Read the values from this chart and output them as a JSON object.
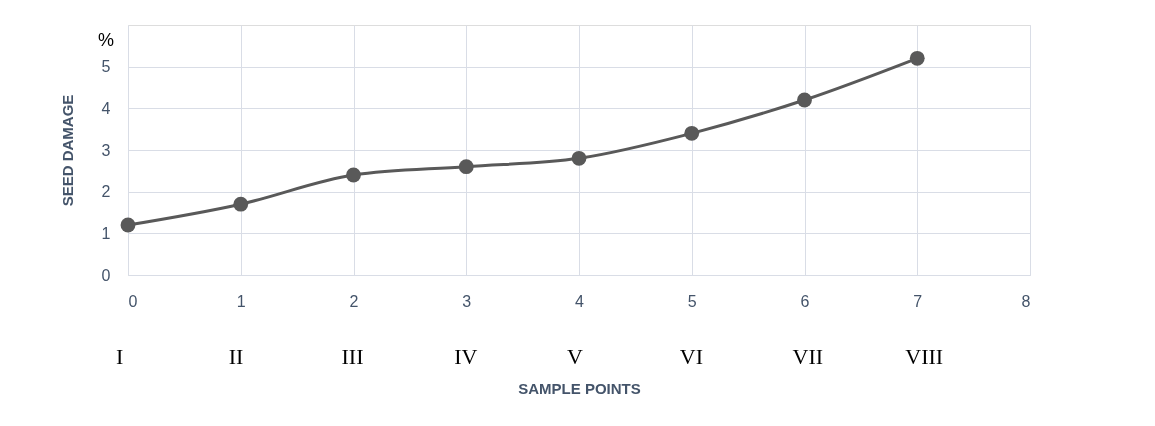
{
  "chart_data": {
    "type": "line",
    "xlabel": "SAMPLE POINTS",
    "ylabel": "SEED DAMAGE",
    "x": [
      0,
      1,
      2,
      3,
      4,
      5,
      6,
      7
    ],
    "series": [
      {
        "color": "#595959",
        "values": [
          1.2,
          1.7,
          2.4,
          2.6,
          2.8,
          3.4,
          4.2,
          5.2
        ]
      }
    ],
    "xlim": [
      0,
      8
    ],
    "xticks": [
      0,
      1,
      2,
      3,
      4,
      5,
      6,
      7,
      8
    ],
    "ylim": [
      0,
      6
    ],
    "yticks": [
      0,
      1,
      2,
      3,
      4,
      5
    ],
    "grid": true,
    "marker": "circle",
    "line_style": "solid",
    "annotations": [
      "%",
      "I",
      "II",
      "III",
      "IV",
      "V",
      "VI",
      "VII",
      "VIII"
    ]
  }
}
